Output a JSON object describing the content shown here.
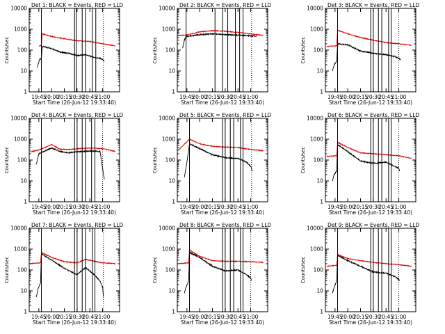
{
  "colors": {
    "black_series": "#000000",
    "red_series": "#e00000",
    "background": "#ffffff"
  },
  "chart_data": [
    {
      "type": "line",
      "title": "Det 1: BLACK = Events, RED = LLD",
      "xlabel": "Start Time (26-Jun-12 19:33:40)",
      "ylabel": "Counts/sec",
      "yscale": "log",
      "ylim": [
        1,
        10000
      ],
      "y_ticks": [
        "1",
        "10",
        "100",
        "1000",
        "10000"
      ],
      "x_ticks": [
        "19:45",
        "20:00",
        "20:15",
        "20:30",
        "20:45",
        "21:00"
      ],
      "xlim": [
        "19:33:40",
        "21:20:00"
      ],
      "grid": false,
      "solid_markers": [
        "19:48",
        "20:27",
        "20:29",
        "20:36",
        "20:40",
        "20:48",
        "20:52"
      ],
      "dotted_markers": [
        "21:01"
      ],
      "series": [
        {
          "color": "black",
          "x": [
            "19:43",
            "19:46",
            "19:48",
            "19:49",
            "20:00",
            "20:10",
            "20:20",
            "20:30",
            "20:40",
            "20:50",
            "20:57",
            "21:00",
            "21:02"
          ],
          "values": [
            15,
            35,
            40,
            150,
            120,
            80,
            70,
            55,
            60,
            45,
            40,
            35,
            30
          ]
        },
        {
          "color": "red",
          "x": [
            "19:45",
            "19:47",
            "19:48",
            "19:49",
            "20:00",
            "20:15",
            "20:30",
            "20:45",
            "21:00",
            "21:15"
          ],
          "values": [
            150,
            170,
            160,
            600,
            450,
            350,
            280,
            260,
            200,
            160
          ]
        }
      ]
    },
    {
      "type": "line",
      "title": "Det 2: BLACK = Events, RED = LLD",
      "xlabel": "Start Time (26-Jun-12 19:33:40)",
      "ylabel": "Counts/sec",
      "yscale": "log",
      "ylim": [
        1,
        10000
      ],
      "y_ticks": [
        "1",
        "10",
        "100",
        "1000",
        "10000"
      ],
      "x_ticks": [
        "19:45",
        "20:00",
        "20:15",
        "20:30",
        "20:45",
        "21:00"
      ],
      "xlim": [
        "19:33:40",
        "21:20:00"
      ],
      "grid": false,
      "solid_markers": [
        "19:44",
        "20:18",
        "20:27",
        "20:33",
        "20:42",
        "20:47",
        "20:51"
      ],
      "dotted_markers": [
        "21:01"
      ],
      "series": [
        {
          "color": "black",
          "x": [
            "19:40",
            "19:42",
            "19:44",
            "20:00",
            "20:15",
            "20:30",
            "20:45",
            "21:00",
            "21:07"
          ],
          "values": [
            130,
            300,
            450,
            550,
            600,
            550,
            520,
            480,
            460
          ]
        },
        {
          "color": "red",
          "x": [
            "19:35",
            "19:44",
            "20:00",
            "20:15",
            "20:30",
            "20:45",
            "21:00",
            "21:15"
          ],
          "values": [
            500,
            520,
            750,
            850,
            800,
            700,
            600,
            500
          ]
        }
      ]
    },
    {
      "type": "line",
      "title": "Det 3: BLACK = Events, RED = LLD",
      "xlabel": "Start Time (26-Jun-12 19:33:40)",
      "ylabel": "Counts/sec",
      "yscale": "log",
      "ylim": [
        1,
        10000
      ],
      "y_ticks": [
        "1",
        "10",
        "100",
        "1000",
        "10000"
      ],
      "x_ticks": [
        "19:45",
        "20:00",
        "20:15",
        "20:30",
        "20:45",
        "21:00"
      ],
      "xlim": [
        "19:33:40",
        "21:20:00"
      ],
      "grid": false,
      "solid_markers": [
        "19:48",
        "20:27",
        "20:30",
        "20:36",
        "20:40",
        "20:48",
        "20:51"
      ],
      "dotted_markers": [
        "21:00"
      ],
      "series": [
        {
          "color": "black",
          "x": [
            "19:42",
            "19:44",
            "19:47",
            "19:48",
            "20:00",
            "20:15",
            "20:30",
            "20:45",
            "20:55",
            "21:00",
            "21:02"
          ],
          "values": [
            10,
            20,
            30,
            200,
            180,
            90,
            70,
            60,
            50,
            40,
            35
          ]
        },
        {
          "color": "red",
          "x": [
            "19:35",
            "19:47",
            "19:48",
            "20:00",
            "20:15",
            "20:30",
            "20:45",
            "21:00",
            "21:15"
          ],
          "values": [
            150,
            160,
            900,
            600,
            400,
            300,
            230,
            200,
            170
          ]
        }
      ]
    },
    {
      "type": "line",
      "title": "Det 4: BLACK = Events, RED = LLD",
      "xlabel": "Start Time (26-Jun-12 19:33:40)",
      "ylabel": "Counts/sec",
      "yscale": "log",
      "ylim": [
        1,
        10000
      ],
      "y_ticks": [
        "1",
        "10",
        "100",
        "1000",
        "10000"
      ],
      "x_ticks": [
        "19:45",
        "20:00",
        "20:15",
        "20:30",
        "20:45",
        "21:00"
      ],
      "xlim": [
        "19:33:40",
        "21:20:00"
      ],
      "grid": false,
      "solid_markers": [
        "19:48",
        "20:27",
        "20:30",
        "20:36",
        "20:40",
        "20:47",
        "20:51"
      ],
      "dotted_markers": [
        "21:00"
      ],
      "series": [
        {
          "color": "black",
          "x": [
            "19:42",
            "19:45",
            "20:00",
            "20:10",
            "20:20",
            "20:30",
            "20:45",
            "20:57",
            "21:00",
            "21:02"
          ],
          "values": [
            60,
            200,
            380,
            260,
            220,
            250,
            270,
            260,
            40,
            12
          ]
        },
        {
          "color": "red",
          "x": [
            "19:35",
            "19:45",
            "20:00",
            "20:10",
            "20:20",
            "20:30",
            "20:45",
            "21:00",
            "21:15"
          ],
          "values": [
            250,
            300,
            550,
            330,
            320,
            350,
            380,
            350,
            260
          ]
        }
      ]
    },
    {
      "type": "line",
      "title": "Det 5: BLACK = Events, RED = LLD",
      "xlabel": "Start Time (26-Jun-12 19:33:40)",
      "ylabel": "Counts/sec",
      "yscale": "log",
      "ylim": [
        1,
        10000
      ],
      "y_ticks": [
        "1",
        "10",
        "100",
        "1000",
        "10000"
      ],
      "x_ticks": [
        "19:45",
        "20:00",
        "20:15",
        "20:30",
        "20:45",
        "21:00"
      ],
      "xlim": [
        "19:33:40",
        "21:20:00"
      ],
      "grid": false,
      "solid_markers": [
        "19:48",
        "20:27",
        "20:30",
        "20:36",
        "20:40",
        "20:48",
        "20:51"
      ],
      "dotted_markers": [
        "21:01"
      ],
      "series": [
        {
          "color": "black",
          "x": [
            "19:42",
            "19:45",
            "19:48",
            "20:00",
            "20:15",
            "20:30",
            "20:45",
            "20:55",
            "21:00",
            "21:02"
          ],
          "values": [
            15,
            80,
            600,
            350,
            180,
            130,
            120,
            80,
            50,
            30
          ]
        },
        {
          "color": "red",
          "x": [
            "19:35",
            "19:48",
            "20:00",
            "20:15",
            "20:30",
            "20:45",
            "21:00",
            "21:15"
          ],
          "values": [
            300,
            1000,
            600,
            450,
            420,
            400,
            320,
            280
          ]
        }
      ]
    },
    {
      "type": "line",
      "title": "Det 6: BLACK = Events, RED = LLD",
      "xlabel": "Start Time (26-Jun-12 19:33:40)",
      "ylabel": "Counts/sec",
      "yscale": "log",
      "ylim": [
        1,
        10000
      ],
      "y_ticks": [
        "1",
        "10",
        "100",
        "1000",
        "10000"
      ],
      "x_ticks": [
        "19:45",
        "20:00",
        "20:15",
        "20:30",
        "20:45",
        "21:00"
      ],
      "xlim": [
        "19:33:40",
        "21:20:00"
      ],
      "grid": false,
      "solid_markers": [
        "19:48",
        "20:27",
        "20:30",
        "20:36",
        "20:40",
        "20:48",
        "20:51"
      ],
      "dotted_markers": [
        "21:00"
      ],
      "series": [
        {
          "color": "black",
          "x": [
            "19:42",
            "19:44",
            "19:47",
            "19:48",
            "20:00",
            "20:15",
            "20:30",
            "20:45",
            "20:55",
            "21:00",
            "21:01"
          ],
          "values": [
            10,
            20,
            30,
            550,
            250,
            90,
            70,
            80,
            50,
            40,
            30
          ]
        },
        {
          "color": "red",
          "x": [
            "19:35",
            "19:47",
            "19:48",
            "20:00",
            "20:15",
            "20:30",
            "20:45",
            "21:00",
            "21:15"
          ],
          "values": [
            150,
            160,
            700,
            400,
            220,
            200,
            180,
            160,
            120
          ]
        }
      ]
    },
    {
      "type": "line",
      "title": "Det 7: BLACK = Events, RED = LLD",
      "xlabel": "Start Time (26-Jun-12 19:33:40)",
      "ylabel": "Counts/sec",
      "yscale": "log",
      "ylim": [
        1,
        10000
      ],
      "y_ticks": [
        "1",
        "10",
        "100",
        "1000",
        "10000"
      ],
      "x_ticks": [
        "19:45",
        "20:00",
        "20:15",
        "20:30",
        "20:45",
        "21:00"
      ],
      "xlim": [
        "19:33:40",
        "21:20:00"
      ],
      "grid": false,
      "solid_markers": [
        "19:48",
        "20:27",
        "20:30",
        "20:36",
        "20:40",
        "20:48",
        "20:51"
      ],
      "dotted_markers": [
        "21:01"
      ],
      "series": [
        {
          "color": "black",
          "x": [
            "19:42",
            "19:44",
            "19:47",
            "19:48",
            "20:00",
            "20:15",
            "20:30",
            "20:40",
            "20:50",
            "20:57",
            "21:00",
            "21:01"
          ],
          "values": [
            5,
            12,
            25,
            600,
            300,
            120,
            60,
            130,
            60,
            30,
            15,
            5
          ]
        },
        {
          "color": "red",
          "x": [
            "19:35",
            "19:47",
            "19:48",
            "20:00",
            "20:15",
            "20:30",
            "20:40",
            "21:00",
            "21:15"
          ],
          "values": [
            200,
            220,
            700,
            400,
            250,
            220,
            320,
            220,
            200
          ]
        }
      ]
    },
    {
      "type": "line",
      "title": "Det 8: BLACK = Events, RED = LLD",
      "xlabel": "Start Time (26-Jun-12 19:33:40)",
      "ylabel": "Counts/sec",
      "yscale": "log",
      "ylim": [
        1,
        10000
      ],
      "y_ticks": [
        "1",
        "10",
        "100",
        "1000",
        "10000"
      ],
      "x_ticks": [
        "19:45",
        "20:00",
        "20:15",
        "20:30",
        "20:45",
        "21:00"
      ],
      "xlim": [
        "19:33:40",
        "21:20:00"
      ],
      "grid": false,
      "solid_markers": [
        "19:48",
        "20:27",
        "20:30",
        "20:36",
        "20:40",
        "20:48",
        "20:51"
      ],
      "dotted_markers": [
        "21:00"
      ],
      "series": [
        {
          "color": "black",
          "x": [
            "19:42",
            "19:44",
            "19:47",
            "19:48",
            "20:00",
            "20:15",
            "20:30",
            "20:45",
            "20:55",
            "21:00",
            "21:01"
          ],
          "values": [
            8,
            15,
            30,
            700,
            400,
            150,
            90,
            100,
            60,
            40,
            30
          ]
        },
        {
          "color": "red",
          "x": [
            "19:35",
            "19:47",
            "19:48",
            "20:00",
            "20:15",
            "20:30",
            "20:45",
            "21:00",
            "21:15"
          ],
          "values": [
            200,
            220,
            900,
            450,
            280,
            260,
            260,
            250,
            230
          ]
        }
      ]
    },
    {
      "type": "line",
      "title": "Det 9: BLACK = Events, RED = LLD",
      "xlabel": "Start Time (26-Jun-12 19:33:40)",
      "ylabel": "Counts/sec",
      "yscale": "log",
      "ylim": [
        1,
        10000
      ],
      "y_ticks": [
        "1",
        "10",
        "100",
        "1000",
        "10000"
      ],
      "x_ticks": [
        "19:45",
        "20:00",
        "20:15",
        "20:30",
        "20:45",
        "21:00"
      ],
      "xlim": [
        "19:33:40",
        "21:20:00"
      ],
      "grid": false,
      "solid_markers": [
        "19:48",
        "20:27",
        "20:30",
        "20:36",
        "20:40",
        "20:48",
        "20:51"
      ],
      "dotted_markers": [
        "21:00"
      ],
      "series": [
        {
          "color": "black",
          "x": [
            "19:42",
            "19:44",
            "19:47",
            "19:48",
            "20:00",
            "20:15",
            "20:30",
            "20:45",
            "20:55",
            "21:00",
            "21:01"
          ],
          "values": [
            8,
            15,
            30,
            500,
            280,
            150,
            80,
            70,
            50,
            35,
            30
          ]
        },
        {
          "color": "red",
          "x": [
            "19:35",
            "19:47",
            "19:48",
            "20:00",
            "20:15",
            "20:30",
            "20:45",
            "21:00",
            "21:15"
          ],
          "values": [
            150,
            170,
            550,
            350,
            280,
            230,
            200,
            180,
            150
          ]
        }
      ]
    }
  ]
}
